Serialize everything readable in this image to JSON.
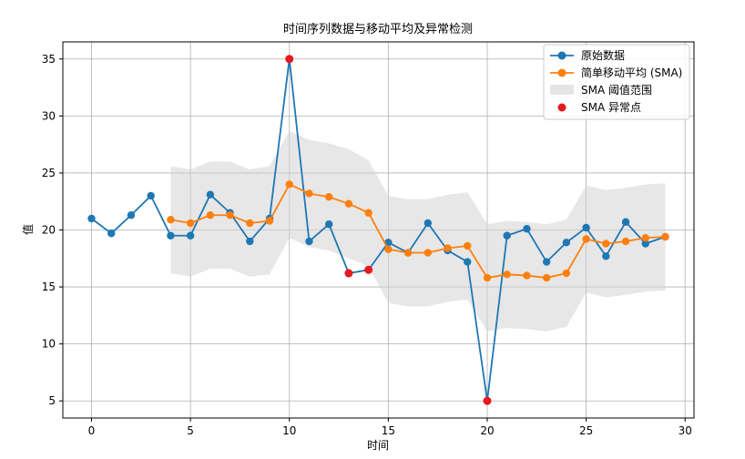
{
  "chart_data": {
    "type": "line",
    "title": "时间序列数据与移动平均及异常检测",
    "xlabel": "时间",
    "ylabel": "值",
    "xlim": [
      -1.45,
      30.45
    ],
    "ylim": [
      3.5,
      36.5
    ],
    "xticks": [
      0,
      5,
      10,
      15,
      20,
      25,
      30
    ],
    "yticks": [
      5,
      10,
      15,
      20,
      25,
      30,
      35
    ],
    "grid": true,
    "legend_position": "top-right",
    "series": [
      {
        "name": "原始数据",
        "color": "#1f77b4",
        "x": [
          0,
          1,
          2,
          3,
          4,
          5,
          6,
          7,
          8,
          9,
          10,
          11,
          12,
          13,
          14,
          15,
          16,
          17,
          18,
          19,
          20,
          21,
          22,
          23,
          24,
          25,
          26,
          27,
          28,
          29
        ],
        "y": [
          21.0,
          19.7,
          21.3,
          23.0,
          19.5,
          19.5,
          23.1,
          21.5,
          19.0,
          21.0,
          35.0,
          19.0,
          20.5,
          16.2,
          16.5,
          18.9,
          18.0,
          20.6,
          18.2,
          17.2,
          5.0,
          19.5,
          20.1,
          17.2,
          18.9,
          20.2,
          17.7,
          20.7,
          18.8,
          19.4
        ]
      },
      {
        "name": "简单移动平均 (SMA)",
        "color": "#ff7f0e",
        "x": [
          4,
          5,
          6,
          7,
          8,
          9,
          10,
          11,
          12,
          13,
          14,
          15,
          16,
          17,
          18,
          19,
          20,
          21,
          22,
          23,
          24,
          25,
          26,
          27,
          28,
          29
        ],
        "y": [
          20.9,
          20.6,
          21.3,
          21.3,
          20.6,
          20.8,
          24.0,
          23.2,
          22.9,
          22.3,
          21.5,
          18.3,
          18.0,
          18.0,
          18.4,
          18.6,
          15.8,
          16.1,
          16.0,
          15.8,
          16.2,
          19.2,
          18.8,
          19.0,
          19.3,
          19.4
        ]
      },
      {
        "name": "SMA 阈值范围",
        "color": "#d3d3d3",
        "x": [
          4,
          5,
          6,
          7,
          8,
          9,
          10,
          11,
          12,
          13,
          14,
          15,
          16,
          17,
          18,
          19,
          20,
          21,
          22,
          23,
          24,
          25,
          26,
          27,
          28,
          29
        ],
        "upper": [
          25.6,
          25.3,
          26.0,
          26.0,
          25.3,
          25.6,
          28.7,
          27.9,
          27.6,
          27.1,
          26.1,
          23.0,
          22.7,
          22.7,
          23.1,
          23.3,
          20.5,
          20.8,
          20.7,
          20.5,
          20.9,
          23.9,
          23.5,
          23.7,
          24.0,
          24.1
        ],
        "lower": [
          16.2,
          15.9,
          16.6,
          16.6,
          15.9,
          16.1,
          19.3,
          18.5,
          18.2,
          17.5,
          16.8,
          13.6,
          13.3,
          13.3,
          13.7,
          13.9,
          11.1,
          11.4,
          11.3,
          11.1,
          11.5,
          14.5,
          14.1,
          14.3,
          14.6,
          14.7
        ]
      },
      {
        "name": "SMA 异常点",
        "color": "#e6191e",
        "x": [
          10,
          13,
          14,
          20
        ],
        "y": [
          35.0,
          16.2,
          16.5,
          5.0
        ]
      }
    ]
  }
}
